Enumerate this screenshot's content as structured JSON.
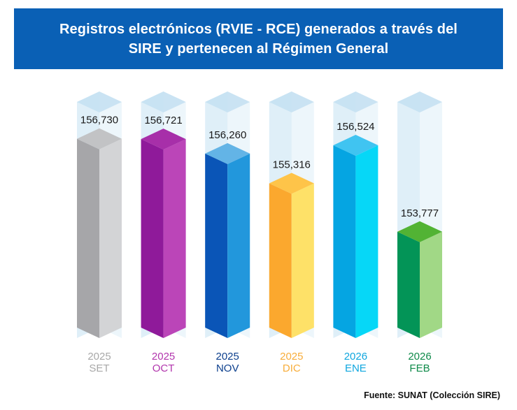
{
  "header": {
    "title_line1": "Registros electrónicos (RVIE - RCE) generados a través del",
    "title_line2": "SIRE y pertenecen al Régimen General",
    "background": "#0a60b5"
  },
  "chart_data": {
    "type": "bar",
    "style": "3d-column",
    "title": "Registros electrónicos (RVIE - RCE) generados a través del SIRE y pertenecen al Régimen General",
    "categories": [
      {
        "year": "2025",
        "month": "SET"
      },
      {
        "year": "2025",
        "month": "OCT"
      },
      {
        "year": "2025",
        "month": "NOV"
      },
      {
        "year": "2025",
        "month": "DIC"
      },
      {
        "year": "2026",
        "month": "ENE"
      },
      {
        "year": "2026",
        "month": "FEB"
      }
    ],
    "values": [
      156730,
      156721,
      156260,
      155316,
      156524,
      153777
    ],
    "value_labels": [
      "156,730",
      "156,721",
      "156,260",
      "155,316",
      "156,524",
      "153,777"
    ],
    "colors": [
      {
        "front": "#a6a6a9",
        "side": "#d3d4d6",
        "top": "#c2c3c5",
        "label": "#a8a8a8"
      },
      {
        "front": "#8f1a9a",
        "side": "#bb45b8",
        "top": "#a72fa9",
        "label": "#b236ad"
      },
      {
        "front": "#0a55b7",
        "side": "#2297dc",
        "top": "#63b4e6",
        "label": "#0c3f8d"
      },
      {
        "front": "#fba82e",
        "side": "#fee168",
        "top": "#fec449",
        "label": "#f8ad3a"
      },
      {
        "front": "#05a5e2",
        "side": "#06d7f7",
        "top": "#40c4f1",
        "label": "#10a7df"
      },
      {
        "front": "#039457",
        "side": "#a1d886",
        "top": "#52b334",
        "label": "#0f8a4a"
      }
    ],
    "glass_color": "#c5e1f2",
    "axis_min": 150400,
    "axis_max": 157900,
    "grid": false,
    "legend": "none"
  },
  "footer": {
    "source": "Fuente: SUNAT (Colección SIRE)"
  }
}
